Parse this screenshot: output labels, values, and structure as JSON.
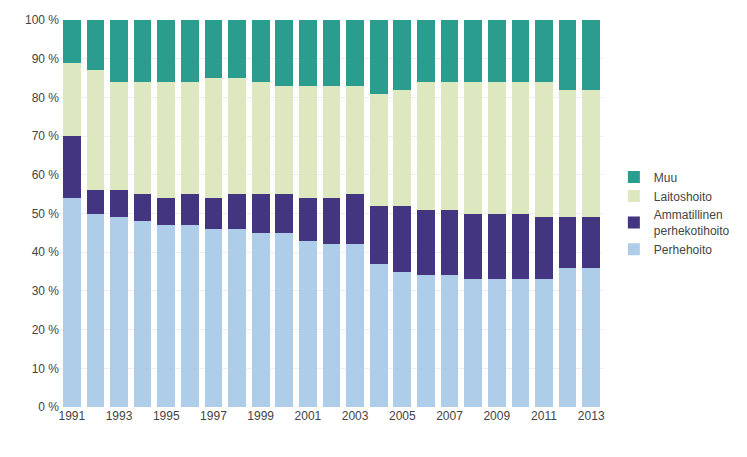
{
  "chart_data": {
    "type": "bar",
    "stacked": true,
    "categories": [
      "1991",
      null,
      "1993",
      null,
      "1995",
      null,
      "1997",
      null,
      "1999",
      null,
      "2001",
      null,
      "2003",
      null,
      "2005",
      null,
      "2007",
      null,
      "2009",
      null,
      "2011",
      null,
      "2013"
    ],
    "series": [
      {
        "name": "Perhehoito",
        "color": "#aecde8",
        "values": [
          54,
          50,
          49,
          48,
          47,
          47,
          46,
          46,
          45,
          45,
          43,
          42,
          42,
          37,
          35,
          34,
          34,
          33,
          33,
          33,
          33,
          36,
          36
        ]
      },
      {
        "name": "Ammatillinen\nperhekotihoito",
        "color": "#433580",
        "values": [
          16,
          6,
          7,
          7,
          7,
          8,
          8,
          9,
          10,
          10,
          11,
          12,
          13,
          15,
          17,
          17,
          17,
          17,
          17,
          17,
          16,
          13,
          13
        ]
      },
      {
        "name": "Laitoshoito",
        "color": "#dde8c0",
        "values": [
          19,
          31,
          28,
          29,
          30,
          29,
          31,
          30,
          29,
          28,
          29,
          29,
          28,
          29,
          30,
          33,
          33,
          34,
          34,
          34,
          35,
          33,
          33
        ]
      },
      {
        "name": "Muu",
        "color": "#2a9d8f",
        "values": [
          11,
          13,
          16,
          16,
          16,
          16,
          15,
          15,
          16,
          17,
          17,
          17,
          17,
          19,
          18,
          16,
          16,
          16,
          16,
          16,
          16,
          18,
          18
        ]
      }
    ],
    "ylim": [
      0,
      100
    ],
    "yticks": [
      {
        "value": 0,
        "label": "0 %"
      },
      {
        "value": 10,
        "label": "10 %"
      },
      {
        "value": 20,
        "label": "20 %"
      },
      {
        "value": 30,
        "label": "30 %"
      },
      {
        "value": 40,
        "label": "40 %"
      },
      {
        "value": 50,
        "label": "50 %"
      },
      {
        "value": 60,
        "label": "60 %"
      },
      {
        "value": 70,
        "label": "70 %"
      },
      {
        "value": 80,
        "label": "80 %"
      },
      {
        "value": 90,
        "label": "90 %"
      },
      {
        "value": 100,
        "label": "100 %"
      }
    ],
    "grid": true,
    "legend": "right"
  }
}
